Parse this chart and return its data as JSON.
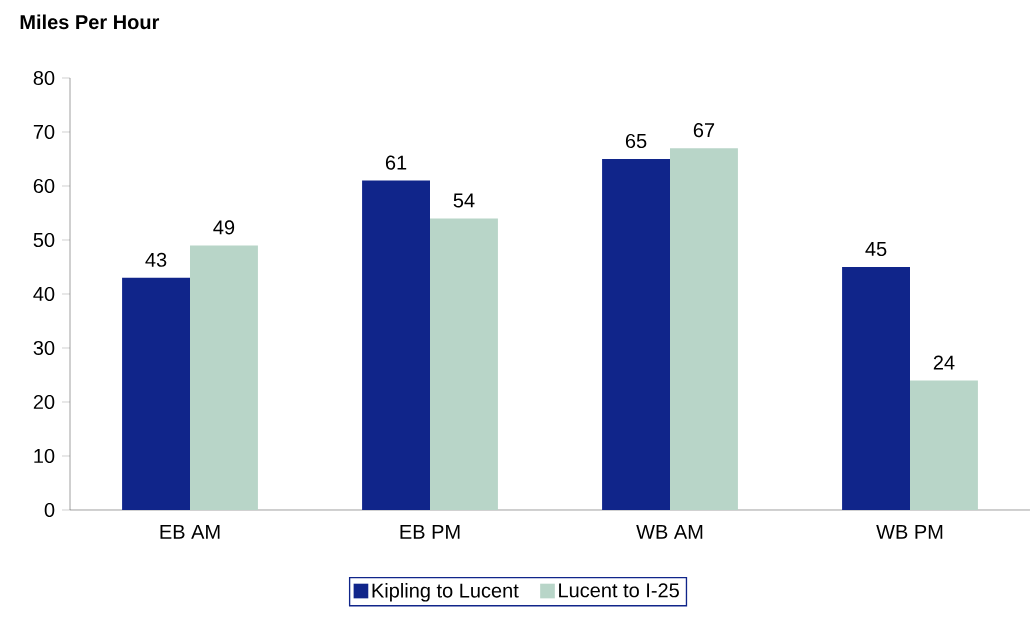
{
  "chart_data": {
    "type": "bar",
    "ylabel": "Miles Per Hour",
    "categories": [
      "EB AM",
      "EB PM",
      "WB AM",
      "WB PM"
    ],
    "series": [
      {
        "name": "Kipling to Lucent",
        "color": "#10258a",
        "values": [
          43,
          61,
          65,
          45
        ]
      },
      {
        "name": "Lucent to I-25",
        "color": "#b8d5c8",
        "values": [
          49,
          54,
          67,
          24
        ]
      }
    ],
    "ylim": [
      0,
      80
    ],
    "yticks": [
      0,
      10,
      20,
      30,
      40,
      50,
      60,
      70,
      80
    ],
    "data_labels": true,
    "grid": false,
    "legend": "bottom"
  }
}
